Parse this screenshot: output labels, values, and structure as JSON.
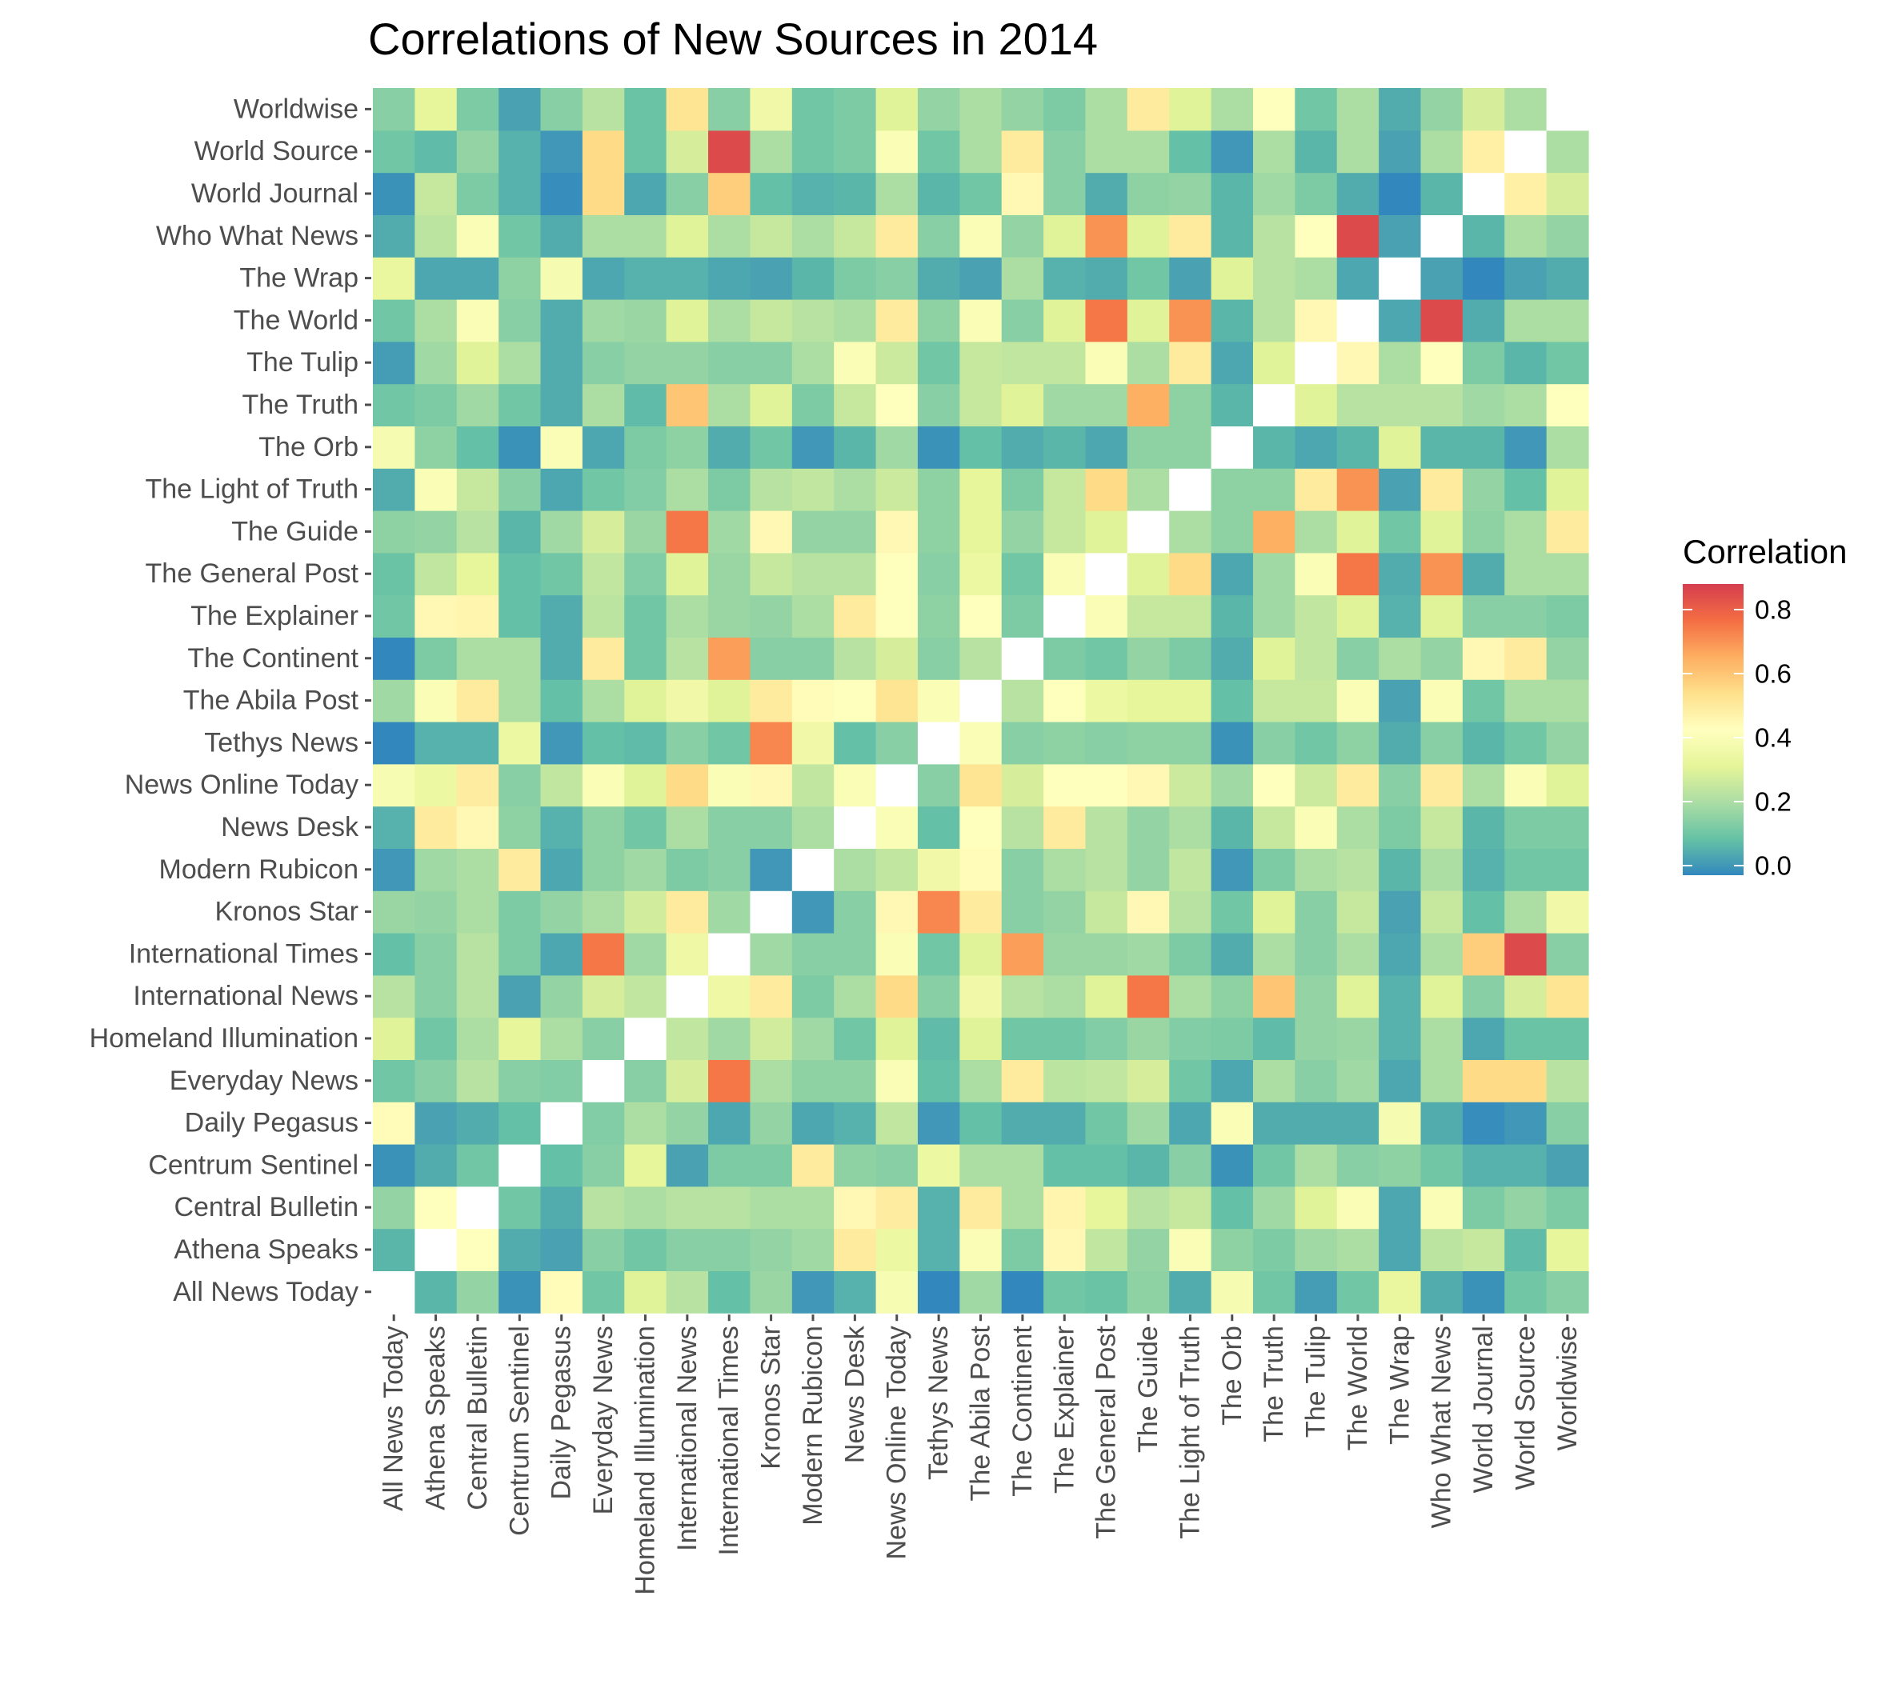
{
  "chart_data": {
    "type": "heatmap",
    "title": "Correlations of New Sources in 2014",
    "xlabel": "",
    "ylabel": "",
    "categories": [
      "All News Today",
      "Athena Speaks",
      "Central Bulletin",
      "Centrum Sentinel",
      "Daily Pegasus",
      "Everyday News",
      "Homeland Illumination",
      "International News",
      "International Times",
      "Kronos Star",
      "Modern Rubicon",
      "News Desk",
      "News Online Today",
      "Tethys News",
      "The Abila Post",
      "The Continent",
      "The Explainer",
      "The General Post",
      "The Guide",
      "The Light of Truth",
      "The Orb",
      "The Truth",
      "The Tulip",
      "The World",
      "The Wrap",
      "Who What News",
      "World Journal",
      "World Source",
      "Worldwise"
    ],
    "matrix": [
      [
        null,
        0.06,
        0.16,
        -0.01,
        0.44,
        0.1,
        0.3,
        0.22,
        0.08,
        0.17,
        0.0,
        0.05,
        0.39,
        -0.05,
        0.18,
        -0.04,
        0.1,
        0.09,
        0.15,
        0.04,
        0.38,
        0.1,
        0.01,
        0.1,
        0.33,
        0.04,
        -0.01,
        0.1,
        0.14
      ],
      [
        0.06,
        null,
        0.42,
        0.04,
        0.02,
        0.14,
        0.1,
        0.14,
        0.14,
        0.16,
        0.18,
        0.5,
        0.34,
        0.05,
        0.4,
        0.12,
        0.45,
        0.24,
        0.16,
        0.4,
        0.15,
        0.12,
        0.18,
        0.2,
        0.03,
        0.23,
        0.25,
        0.07,
        0.32
      ],
      [
        0.16,
        0.42,
        null,
        0.1,
        0.04,
        0.22,
        0.2,
        0.22,
        0.22,
        0.2,
        0.2,
        0.45,
        0.49,
        0.05,
        0.5,
        0.2,
        0.46,
        0.32,
        0.22,
        0.25,
        0.08,
        0.18,
        0.3,
        0.4,
        0.03,
        0.4,
        0.12,
        0.16,
        0.12
      ],
      [
        -0.01,
        0.04,
        0.1,
        null,
        0.08,
        0.14,
        0.32,
        0.02,
        0.12,
        0.12,
        0.5,
        0.15,
        0.14,
        0.34,
        0.2,
        0.2,
        0.08,
        0.08,
        0.06,
        0.14,
        -0.01,
        0.1,
        0.2,
        0.14,
        0.15,
        0.1,
        0.05,
        0.05,
        0.02
      ],
      [
        0.44,
        0.02,
        0.04,
        0.08,
        null,
        0.13,
        0.2,
        0.16,
        0.03,
        0.16,
        0.03,
        0.05,
        0.24,
        0.0,
        0.08,
        0.04,
        0.04,
        0.1,
        0.18,
        0.03,
        0.4,
        0.04,
        0.04,
        0.04,
        0.38,
        0.04,
        -0.02,
        0.0,
        0.14
      ],
      [
        0.1,
        0.14,
        0.22,
        0.14,
        0.13,
        null,
        0.14,
        0.28,
        0.75,
        0.2,
        0.15,
        0.15,
        0.4,
        0.08,
        0.2,
        0.5,
        0.23,
        0.24,
        0.28,
        0.1,
        0.03,
        0.2,
        0.14,
        0.18,
        0.03,
        0.2,
        0.55,
        0.55,
        0.22
      ],
      [
        0.3,
        0.1,
        0.2,
        0.32,
        0.2,
        0.14,
        null,
        0.24,
        0.18,
        0.27,
        0.18,
        0.1,
        0.3,
        0.07,
        0.3,
        0.1,
        0.1,
        0.13,
        0.17,
        0.13,
        0.12,
        0.07,
        0.16,
        0.17,
        0.05,
        0.2,
        0.03,
        0.09,
        0.09
      ],
      [
        0.22,
        0.14,
        0.22,
        0.02,
        0.16,
        0.28,
        0.24,
        null,
        0.35,
        0.5,
        0.12,
        0.2,
        0.55,
        0.14,
        0.36,
        0.22,
        0.2,
        0.3,
        0.75,
        0.2,
        0.15,
        0.6,
        0.16,
        0.3,
        0.05,
        0.3,
        0.14,
        0.28,
        0.52
      ],
      [
        0.08,
        0.14,
        0.22,
        0.12,
        0.03,
        0.75,
        0.18,
        0.35,
        null,
        0.18,
        0.14,
        0.14,
        0.4,
        0.1,
        0.3,
        0.68,
        0.17,
        0.17,
        0.18,
        0.12,
        0.04,
        0.2,
        0.14,
        0.2,
        0.03,
        0.2,
        0.58,
        0.85,
        0.14
      ],
      [
        0.17,
        0.16,
        0.2,
        0.12,
        0.16,
        0.2,
        0.27,
        0.5,
        0.18,
        null,
        0.0,
        0.14,
        0.45,
        0.72,
        0.5,
        0.14,
        0.16,
        0.25,
        0.45,
        0.22,
        0.1,
        0.3,
        0.14,
        0.25,
        0.02,
        0.25,
        0.08,
        0.2,
        0.36
      ],
      [
        0.0,
        0.18,
        0.2,
        0.5,
        0.03,
        0.15,
        0.18,
        0.12,
        0.14,
        0.0,
        null,
        0.2,
        0.24,
        0.36,
        0.44,
        0.14,
        0.2,
        0.22,
        0.16,
        0.24,
        0.0,
        0.12,
        0.2,
        0.22,
        0.06,
        0.2,
        0.05,
        0.1,
        0.1
      ],
      [
        0.05,
        0.5,
        0.45,
        0.15,
        0.05,
        0.15,
        0.1,
        0.2,
        0.14,
        0.14,
        0.2,
        null,
        0.4,
        0.08,
        0.42,
        0.22,
        0.5,
        0.22,
        0.16,
        0.2,
        0.06,
        0.25,
        0.4,
        0.2,
        0.12,
        0.25,
        0.06,
        0.12,
        0.12
      ],
      [
        0.39,
        0.34,
        0.49,
        0.14,
        0.24,
        0.4,
        0.3,
        0.55,
        0.4,
        0.45,
        0.24,
        0.4,
        null,
        0.14,
        0.52,
        0.28,
        0.42,
        0.42,
        0.45,
        0.26,
        0.18,
        0.42,
        0.26,
        0.5,
        0.14,
        0.5,
        0.2,
        0.4,
        0.3
      ],
      [
        -0.05,
        0.05,
        0.05,
        0.34,
        0.0,
        0.08,
        0.07,
        0.14,
        0.1,
        0.72,
        0.36,
        0.08,
        0.14,
        null,
        0.4,
        0.14,
        0.15,
        0.14,
        0.15,
        0.15,
        -0.01,
        0.14,
        0.1,
        0.15,
        0.04,
        0.14,
        0.06,
        0.1,
        0.16
      ],
      [
        0.18,
        0.4,
        0.5,
        0.2,
        0.08,
        0.2,
        0.3,
        0.36,
        0.3,
        0.5,
        0.44,
        0.42,
        0.52,
        0.4,
        null,
        0.22,
        0.42,
        0.34,
        0.32,
        0.32,
        0.08,
        0.25,
        0.25,
        0.4,
        0.02,
        0.4,
        0.1,
        0.2,
        0.2
      ],
      [
        -0.04,
        0.12,
        0.2,
        0.2,
        0.04,
        0.5,
        0.1,
        0.22,
        0.68,
        0.14,
        0.14,
        0.22,
        0.28,
        0.14,
        0.22,
        null,
        0.12,
        0.1,
        0.16,
        0.12,
        0.04,
        0.3,
        0.24,
        0.14,
        0.2,
        0.16,
        0.45,
        0.5,
        0.16
      ],
      [
        0.1,
        0.45,
        0.46,
        0.08,
        0.04,
        0.23,
        0.1,
        0.2,
        0.17,
        0.16,
        0.2,
        0.5,
        0.42,
        0.15,
        0.42,
        0.12,
        null,
        0.4,
        0.25,
        0.25,
        0.06,
        0.18,
        0.24,
        0.3,
        0.05,
        0.3,
        0.14,
        0.14,
        0.12
      ],
      [
        0.09,
        0.24,
        0.32,
        0.08,
        0.1,
        0.24,
        0.13,
        0.3,
        0.17,
        0.25,
        0.22,
        0.22,
        0.42,
        0.14,
        0.34,
        0.1,
        0.4,
        null,
        0.3,
        0.55,
        0.03,
        0.18,
        0.4,
        0.75,
        0.04,
        0.7,
        0.04,
        0.2,
        0.2
      ],
      [
        0.15,
        0.16,
        0.22,
        0.06,
        0.18,
        0.28,
        0.17,
        0.75,
        0.18,
        0.45,
        0.16,
        0.16,
        0.45,
        0.15,
        0.32,
        0.16,
        0.25,
        0.3,
        null,
        0.2,
        0.15,
        0.65,
        0.2,
        0.3,
        0.1,
        0.3,
        0.15,
        0.2,
        0.5
      ],
      [
        0.04,
        0.4,
        0.25,
        0.14,
        0.03,
        0.1,
        0.13,
        0.2,
        0.12,
        0.22,
        0.24,
        0.2,
        0.26,
        0.15,
        0.32,
        0.12,
        0.25,
        0.55,
        0.2,
        null,
        0.15,
        0.15,
        0.5,
        0.7,
        0.02,
        0.5,
        0.16,
        0.08,
        0.3
      ],
      [
        0.38,
        0.15,
        0.08,
        -0.01,
        0.4,
        0.03,
        0.12,
        0.15,
        0.04,
        0.1,
        0.0,
        0.06,
        0.18,
        -0.01,
        0.08,
        0.04,
        0.06,
        0.03,
        0.15,
        0.15,
        null,
        0.06,
        0.03,
        0.06,
        0.3,
        0.06,
        0.06,
        0.0,
        0.2
      ],
      [
        0.1,
        0.12,
        0.18,
        0.1,
        0.04,
        0.2,
        0.07,
        0.6,
        0.2,
        0.3,
        0.12,
        0.25,
        0.42,
        0.14,
        0.25,
        0.3,
        0.18,
        0.18,
        0.65,
        0.15,
        0.06,
        null,
        0.3,
        0.22,
        0.22,
        0.22,
        0.18,
        0.2,
        0.42
      ],
      [
        0.01,
        0.18,
        0.3,
        0.2,
        0.04,
        0.14,
        0.16,
        0.16,
        0.14,
        0.14,
        0.2,
        0.4,
        0.26,
        0.1,
        0.25,
        0.24,
        0.24,
        0.4,
        0.2,
        0.5,
        0.03,
        0.3,
        null,
        0.45,
        0.2,
        0.42,
        0.12,
        0.06,
        0.1
      ],
      [
        0.1,
        0.2,
        0.4,
        0.14,
        0.04,
        0.18,
        0.17,
        0.3,
        0.2,
        0.25,
        0.22,
        0.2,
        0.5,
        0.15,
        0.4,
        0.14,
        0.3,
        0.75,
        0.3,
        0.7,
        0.06,
        0.22,
        0.45,
        null,
        0.03,
        0.85,
        0.04,
        0.2,
        0.2
      ],
      [
        0.33,
        0.03,
        0.03,
        0.15,
        0.38,
        0.03,
        0.05,
        0.05,
        0.03,
        0.02,
        0.06,
        0.12,
        0.14,
        0.04,
        0.02,
        0.2,
        0.05,
        0.04,
        0.1,
        0.02,
        0.3,
        0.22,
        0.2,
        0.03,
        null,
        0.02,
        -0.03,
        0.02,
        0.04
      ],
      [
        0.04,
        0.23,
        0.4,
        0.1,
        0.04,
        0.2,
        0.2,
        0.3,
        0.2,
        0.25,
        0.2,
        0.25,
        0.5,
        0.14,
        0.4,
        0.16,
        0.3,
        0.7,
        0.3,
        0.5,
        0.06,
        0.22,
        0.42,
        0.85,
        0.02,
        null,
        0.06,
        0.2,
        0.16
      ],
      [
        -0.01,
        0.25,
        0.12,
        0.05,
        -0.02,
        0.55,
        0.03,
        0.14,
        0.58,
        0.08,
        0.05,
        0.06,
        0.2,
        0.06,
        0.1,
        0.45,
        0.14,
        0.04,
        0.15,
        0.16,
        0.06,
        0.18,
        0.12,
        0.04,
        -0.03,
        0.06,
        null,
        0.48,
        0.28
      ],
      [
        0.1,
        0.07,
        0.16,
        0.05,
        0.0,
        0.55,
        0.09,
        0.28,
        0.85,
        0.2,
        0.1,
        0.12,
        0.4,
        0.1,
        0.2,
        0.5,
        0.14,
        0.2,
        0.2,
        0.08,
        0.0,
        0.2,
        0.06,
        0.2,
        0.02,
        0.2,
        0.48,
        null,
        0.2
      ],
      [
        0.14,
        0.32,
        0.12,
        0.02,
        0.14,
        0.22,
        0.09,
        0.52,
        0.14,
        0.36,
        0.1,
        0.12,
        0.3,
        0.16,
        0.2,
        0.16,
        0.12,
        0.2,
        0.5,
        0.3,
        0.2,
        0.42,
        0.1,
        0.2,
        0.04,
        0.16,
        0.28,
        0.2,
        null
      ]
    ],
    "color_scale": {
      "low": "#3288bd",
      "stops": [
        "#3288bd",
        "#66c2a5",
        "#abdda4",
        "#e6f598",
        "#ffffbf",
        "#fee08b",
        "#fdae61",
        "#f46d43",
        "#d53e4f"
      ],
      "limits": [
        -0.03,
        0.88
      ]
    },
    "legend": {
      "title": "Correlation",
      "position": "right",
      "ticks": [
        "0.0",
        "0.2",
        "0.4",
        "0.6",
        "0.8"
      ],
      "tick_values": [
        0.0,
        0.2,
        0.4,
        0.6,
        0.8
      ]
    },
    "grid": false
  }
}
